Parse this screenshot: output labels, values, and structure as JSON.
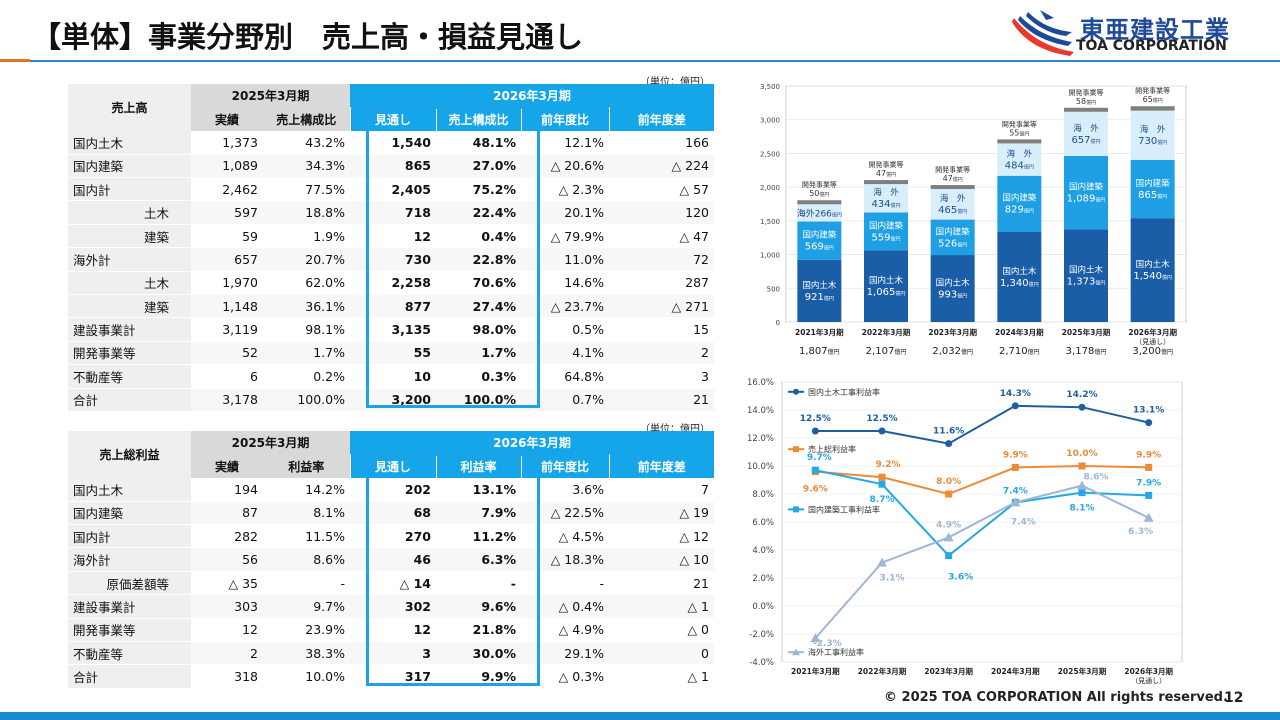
{
  "title": "【単体】事業分野別　売上高・損益見通し",
  "logo": {
    "jp": "東亜建設工業",
    "en": "TOA CORPORATION"
  },
  "table1": {
    "unit": "（単位：億円）",
    "corner": "売上高",
    "period_prev": "2025年3月期",
    "period_next": "2026年3月期",
    "cols": [
      "実績",
      "売上構成比",
      "見通し",
      "売上構成比",
      "前年度比",
      "前年度差"
    ],
    "rows": [
      {
        "label": "国内土木",
        "sub": false,
        "v": [
          "1,373",
          "43.2%",
          "1,540",
          "48.1%",
          "12.1%",
          "166"
        ]
      },
      {
        "label": "国内建築",
        "sub": false,
        "v": [
          "1,089",
          "34.3%",
          "865",
          "27.0%",
          "△ 20.6%",
          "△ 224"
        ]
      },
      {
        "label": "国内計",
        "sub": false,
        "v": [
          "2,462",
          "77.5%",
          "2,405",
          "75.2%",
          "△ 2.3%",
          "△ 57"
        ]
      },
      {
        "label": "土木",
        "sub": true,
        "v": [
          "597",
          "18.8%",
          "718",
          "22.4%",
          "20.1%",
          "120"
        ]
      },
      {
        "label": "建築",
        "sub": true,
        "v": [
          "59",
          "1.9%",
          "12",
          "0.4%",
          "△ 79.9%",
          "△ 47"
        ]
      },
      {
        "label": "海外計",
        "sub": false,
        "v": [
          "657",
          "20.7%",
          "730",
          "22.8%",
          "11.0%",
          "72"
        ]
      },
      {
        "label": "土木",
        "sub": true,
        "v": [
          "1,970",
          "62.0%",
          "2,258",
          "70.6%",
          "14.6%",
          "287"
        ]
      },
      {
        "label": "建築",
        "sub": true,
        "v": [
          "1,148",
          "36.1%",
          "877",
          "27.4%",
          "△ 23.7%",
          "△ 271"
        ]
      },
      {
        "label": "建設事業計",
        "sub": false,
        "v": [
          "3,119",
          "98.1%",
          "3,135",
          "98.0%",
          "0.5%",
          "15"
        ]
      },
      {
        "label": "開発事業等",
        "sub": false,
        "v": [
          "52",
          "1.7%",
          "55",
          "1.7%",
          "4.1%",
          "2"
        ]
      },
      {
        "label": "不動産等",
        "sub": false,
        "v": [
          "6",
          "0.2%",
          "10",
          "0.3%",
          "64.8%",
          "3"
        ]
      },
      {
        "label": "合計",
        "sub": false,
        "total": true,
        "v": [
          "3,178",
          "100.0%",
          "3,200",
          "100.0%",
          "0.7%",
          "21"
        ]
      }
    ]
  },
  "table2": {
    "unit": "（単位：億円）",
    "corner": "売上総利益",
    "period_prev": "2025年3月期",
    "period_next": "2026年3月期",
    "cols": [
      "実績",
      "利益率",
      "見通し",
      "利益率",
      "前年度比",
      "前年度差"
    ],
    "rows": [
      {
        "label": "国内土木",
        "sub": false,
        "v": [
          "194",
          "14.2%",
          "202",
          "13.1%",
          "3.6%",
          "7"
        ]
      },
      {
        "label": "国内建築",
        "sub": false,
        "v": [
          "87",
          "8.1%",
          "68",
          "7.9%",
          "△ 22.5%",
          "△ 19"
        ]
      },
      {
        "label": "国内計",
        "sub": false,
        "v": [
          "282",
          "11.5%",
          "270",
          "11.2%",
          "△ 4.5%",
          "△ 12"
        ]
      },
      {
        "label": "海外計",
        "sub": false,
        "v": [
          "56",
          "8.6%",
          "46",
          "6.3%",
          "△ 18.3%",
          "△ 10"
        ]
      },
      {
        "label": "原価差額等",
        "sub": true,
        "v": [
          "△ 35",
          "-",
          "△ 14",
          "-",
          "-",
          "21"
        ]
      },
      {
        "label": "建設事業計",
        "sub": false,
        "v": [
          "303",
          "9.7%",
          "302",
          "9.6%",
          "△ 0.4%",
          "△ 1"
        ]
      },
      {
        "label": "開発事業等",
        "sub": false,
        "v": [
          "12",
          "23.9%",
          "12",
          "21.8%",
          "△ 4.9%",
          "△ 0"
        ]
      },
      {
        "label": "不動産等",
        "sub": false,
        "v": [
          "2",
          "38.3%",
          "3",
          "30.0%",
          "29.1%",
          "0"
        ]
      },
      {
        "label": "合計",
        "sub": false,
        "total": true,
        "v": [
          "318",
          "10.0%",
          "317",
          "9.9%",
          "△ 0.3%",
          "△ 1"
        ]
      }
    ]
  },
  "chart_data": [
    {
      "type": "bar",
      "stacked": true,
      "categories": [
        "2021年3月期",
        "2022年3月期",
        "2023年3月期",
        "2024年3月期",
        "2025年3月期",
        "2026年3月期"
      ],
      "category_notes": [
        "",
        "",
        "",
        "",
        "",
        "（見通し）"
      ],
      "totals": [
        "1,807億円",
        "2,107億円",
        "2,032億円",
        "2,710億円",
        "3,178億円",
        "3,200億円"
      ],
      "ylim": [
        0,
        3500
      ],
      "yticks": [
        "0",
        "500",
        "1,000",
        "1,500",
        "2,000",
        "2,500",
        "3,000",
        "3,500"
      ],
      "series": [
        {
          "name": "国内土木",
          "values": [
            921,
            1065,
            993,
            1340,
            1373,
            1540
          ],
          "labels": [
            "921",
            "1,065",
            "993",
            "1,340",
            "1,373",
            "1,540"
          ],
          "color": "#1b5ea8"
        },
        {
          "name": "国内建築",
          "values": [
            569,
            559,
            526,
            829,
            1089,
            865
          ],
          "labels": [
            "569",
            "559",
            "526",
            "829",
            "1,089",
            "865"
          ],
          "color": "#1fa0e5"
        },
        {
          "name": "海外",
          "values": [
            266,
            434,
            465,
            484,
            657,
            730
          ],
          "labels": [
            "266",
            "434",
            "465",
            "484",
            "657",
            "730"
          ],
          "color": "#d8eefb"
        },
        {
          "name": "開発事業等",
          "values": [
            50,
            47,
            47,
            55,
            58,
            65
          ],
          "labels": [
            "50",
            "47",
            "47",
            "55",
            "58",
            "65"
          ],
          "color": "#7f7f7f"
        }
      ],
      "unit_small": "億円",
      "overseas_prefix": [
        "海外",
        "海　外",
        "海　外",
        "海　外",
        "海　外",
        "海　外"
      ]
    },
    {
      "type": "line",
      "categories": [
        "2021年3月期",
        "2022年3月期",
        "2023年3月期",
        "2024年3月期",
        "2025年3月期",
        "2026年3月期"
      ],
      "category_notes": [
        "",
        "",
        "",
        "",
        "",
        "（見通し）"
      ],
      "ylim": [
        -4.0,
        16.0
      ],
      "yticks": [
        "-4.0%",
        "-2.0%",
        "0.0%",
        "2.0%",
        "4.0%",
        "6.0%",
        "8.0%",
        "10.0%",
        "12.0%",
        "14.0%",
        "16.0%"
      ],
      "series": [
        {
          "name": "国内土木工事利益率",
          "values": [
            12.5,
            12.5,
            11.6,
            14.3,
            14.2,
            13.1
          ],
          "labels": [
            "12.5%",
            "12.5%",
            "11.6%",
            "14.3%",
            "14.2%",
            "13.1%"
          ],
          "color": "#1f5fa0",
          "marker": "circle"
        },
        {
          "name": "売上総利益率",
          "values": [
            9.6,
            9.2,
            8.0,
            9.9,
            10.0,
            9.9
          ],
          "labels": [
            "9.6%",
            "9.2%",
            "8.0%",
            "9.9%",
            "10.0%",
            "9.9%"
          ],
          "color": "#ee8a34",
          "marker": "square"
        },
        {
          "name": "国内建築工事利益率",
          "values": [
            9.7,
            8.7,
            3.6,
            7.4,
            8.1,
            7.9
          ],
          "labels": [
            "9.7%",
            "8.7%",
            "3.6%",
            "7.4%",
            "8.1%",
            "7.9%"
          ],
          "color": "#24a8e6",
          "marker": "square"
        },
        {
          "name": "海外工事利益率",
          "values": [
            -2.3,
            3.1,
            4.9,
            7.4,
            8.6,
            6.3
          ],
          "labels": [
            "-2.3%",
            "3.1%",
            "4.9%",
            "7.4%",
            "8.6%",
            "6.3%"
          ],
          "color": "#9fb6d4",
          "marker": "triangle"
        }
      ]
    }
  ],
  "footer": {
    "copyright": "© 2025 TOA CORPORATION  All rights reserved.",
    "page": "12"
  }
}
